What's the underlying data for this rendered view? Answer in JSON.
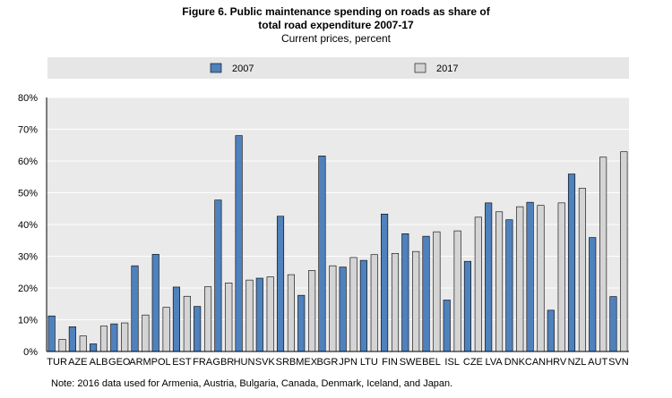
{
  "chart_data": {
    "type": "bar",
    "title_line1": "Figure 6. Public maintenance spending on roads as share of",
    "title_line2": "total road expenditure 2007-17",
    "subtitle": "Current prices, percent",
    "note": "Note: 2016 data used for Armenia,  Austria, Bulgaria, Canada, Denmark, Iceland, and Japan.",
    "ylim": [
      0,
      80
    ],
    "yticks": [
      "0%",
      "10%",
      "20%",
      "30%",
      "40%",
      "50%",
      "60%",
      "70%",
      "80%"
    ],
    "grid": true,
    "legend_position": "top",
    "categories": [
      "TUR",
      "AZE",
      "ALB",
      "GEO",
      "ARM",
      "POL",
      "EST",
      "FRA",
      "GBR",
      "HUN",
      "SVK",
      "SRB",
      "MEX",
      "BGR",
      "JPN",
      "LTU",
      "FIN",
      "SWE",
      "BEL",
      "ISL",
      "CZE",
      "LVA",
      "DNK",
      "CAN",
      "HRV",
      "NZL",
      "AUT",
      "SVN"
    ],
    "series": [
      {
        "name": "2007",
        "color": "#4f81bd",
        "values": [
          11.2,
          7.8,
          2.4,
          8.7,
          27,
          30.6,
          20.3,
          14.2,
          47.7,
          68,
          23.1,
          42.6,
          17.7,
          61.6,
          26.6,
          28.7,
          43.3,
          37.1,
          36.3,
          16.2,
          28.4,
          46.8,
          41.5,
          47,
          13,
          55.9,
          35.9,
          17.3
        ]
      },
      {
        "name": "2017",
        "color": "#d4d4d4",
        "values": [
          3.8,
          4.9,
          8,
          9,
          11.5,
          13.9,
          17.4,
          20.4,
          21.6,
          22.5,
          23.5,
          24.2,
          25.5,
          27,
          29.6,
          30.5,
          30.9,
          31.5,
          37.7,
          38,
          42.3,
          44,
          45.6,
          46,
          46.8,
          51.4,
          61.2,
          62.9
        ]
      }
    ]
  },
  "colors": {
    "plot_background": "#eaeaea",
    "legend_background": "#e6e6e6",
    "axis": "#000000"
  }
}
